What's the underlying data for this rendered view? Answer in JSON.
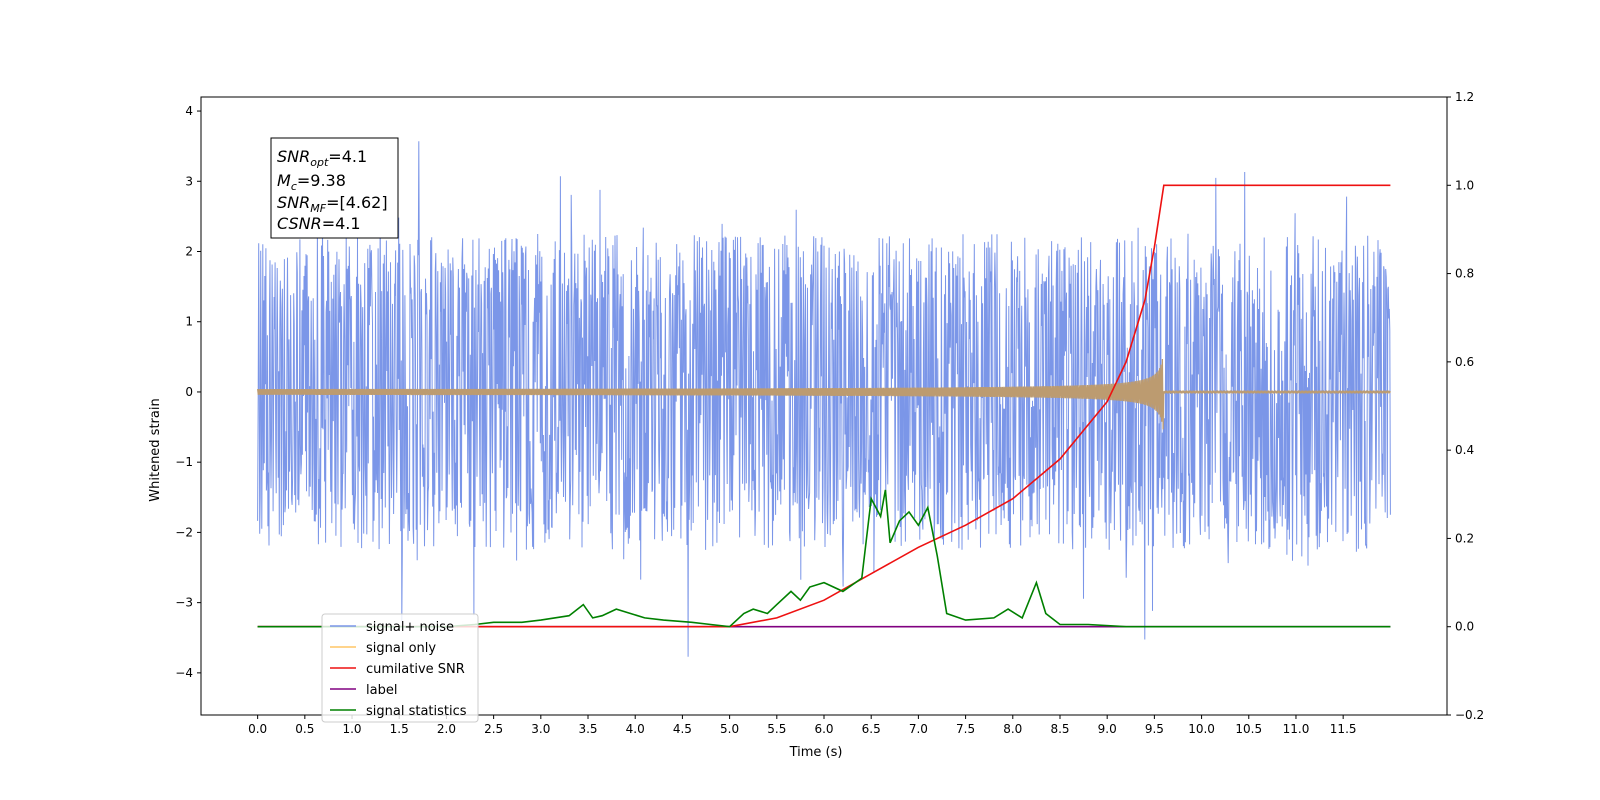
{
  "chart_data": {
    "type": "line",
    "xlabel": "Time (s)",
    "ylabel": "Whitened strain",
    "xlim": [
      -0.6,
      12.6
    ],
    "ylim": [
      -4.6,
      4.2
    ],
    "y2lim": [
      -0.2,
      1.2
    ],
    "x_ticks": [
      "0.0",
      "0.5",
      "1.0",
      "1.5",
      "2.0",
      "2.5",
      "3.0",
      "3.5",
      "4.0",
      "4.5",
      "5.0",
      "5.5",
      "6.0",
      "6.5",
      "7.0",
      "7.5",
      "8.0",
      "8.5",
      "9.0",
      "9.5",
      "10.0",
      "10.5",
      "11.0",
      "11.5"
    ],
    "y_ticks": [
      "4",
      "3",
      "2",
      "1",
      "0",
      "−1",
      "−2",
      "−3",
      "−4"
    ],
    "y2_ticks": [
      "1.2",
      "1.0",
      "0.8",
      "0.6",
      "0.4",
      "0.2",
      "0.0",
      "−0.2"
    ],
    "annotation": {
      "snr_opt": "4.1",
      "mc": "9.38",
      "snr_mf": "[4.62]",
      "csnr": "4.1"
    },
    "series": [
      {
        "name": "signal+ noise",
        "color": "#7b96e8",
        "axis": "left",
        "kind": "noise",
        "envelope": {
          "typical_amplitude": 2.0,
          "peak_max": 3.8,
          "peak_min": -4.1
        }
      },
      {
        "name": "signal only",
        "color": "#ffc566",
        "axis": "left",
        "kind": "chirp",
        "merger_time": 9.6,
        "start_amplitude": 0.02,
        "peak_amplitude": 0.7,
        "display_color": "#bc9b70"
      },
      {
        "name": "cumilative SNR",
        "color": "#ee1111",
        "axis": "right",
        "x": [
          0.0,
          5.0,
          5.5,
          6.0,
          6.5,
          7.0,
          7.5,
          8.0,
          8.5,
          9.0,
          9.2,
          9.4,
          9.5,
          9.6,
          12.0
        ],
        "y": [
          0.0,
          0.0,
          0.02,
          0.06,
          0.12,
          0.18,
          0.23,
          0.29,
          0.38,
          0.51,
          0.6,
          0.74,
          0.86,
          1.0,
          1.0
        ]
      },
      {
        "name": "label",
        "color": "#800080",
        "axis": "right",
        "x": [
          0.0,
          12.0
        ],
        "y": [
          0.0,
          0.0
        ]
      },
      {
        "name": "signal statistics",
        "color": "#008000",
        "axis": "right",
        "x": [
          0.0,
          2.0,
          2.3,
          2.5,
          2.8,
          3.0,
          3.3,
          3.45,
          3.55,
          3.65,
          3.8,
          3.95,
          4.1,
          4.3,
          4.6,
          4.8,
          5.0,
          5.15,
          5.25,
          5.4,
          5.5,
          5.65,
          5.75,
          5.85,
          6.0,
          6.2,
          6.4,
          6.5,
          6.6,
          6.65,
          6.7,
          6.8,
          6.9,
          7.0,
          7.1,
          7.2,
          7.3,
          7.5,
          7.8,
          7.95,
          8.1,
          8.25,
          8.35,
          8.5,
          8.8,
          9.2,
          12.0
        ],
        "y": [
          0.0,
          0.0,
          0.005,
          0.01,
          0.01,
          0.015,
          0.025,
          0.05,
          0.02,
          0.025,
          0.04,
          0.03,
          0.02,
          0.015,
          0.01,
          0.005,
          0.0,
          0.03,
          0.04,
          0.03,
          0.05,
          0.08,
          0.06,
          0.09,
          0.1,
          0.08,
          0.11,
          0.29,
          0.25,
          0.31,
          0.19,
          0.24,
          0.26,
          0.23,
          0.27,
          0.16,
          0.03,
          0.015,
          0.02,
          0.04,
          0.02,
          0.1,
          0.03,
          0.005,
          0.005,
          0.0,
          0.0
        ]
      }
    ],
    "legend": {
      "placement": "lower-left",
      "entries": [
        "signal+ noise",
        "signal only",
        "cumilative SNR",
        "label",
        "signal statistics"
      ]
    }
  }
}
